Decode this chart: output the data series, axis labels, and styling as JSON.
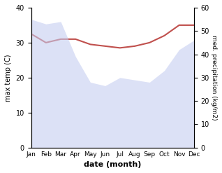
{
  "months": [
    "Jan",
    "Feb",
    "Mar",
    "Apr",
    "May",
    "Jun",
    "Jul",
    "Aug",
    "Sep",
    "Oct",
    "Nov",
    "Dec"
  ],
  "max_temp": [
    32.5,
    30.0,
    31.0,
    31.0,
    29.5,
    29.0,
    28.5,
    29.0,
    30.0,
    32.0,
    35.0,
    35.0
  ],
  "precipitation": [
    55.0,
    53.0,
    54.0,
    39.0,
    28.0,
    26.5,
    30.0,
    29.0,
    28.0,
    33.0,
    42.0,
    46.0
  ],
  "temp_color": "#c0504d",
  "precip_fill_color": "#c5cdf0",
  "xlabel": "date (month)",
  "ylabel_left": "max temp (C)",
  "ylabel_right": "med. precipitation (kg/m2)",
  "ylim_left": [
    0,
    40
  ],
  "ylim_right": [
    0,
    60
  ],
  "yticks_left": [
    0,
    10,
    20,
    30,
    40
  ],
  "yticks_right": [
    0,
    10,
    20,
    30,
    40,
    50,
    60
  ]
}
